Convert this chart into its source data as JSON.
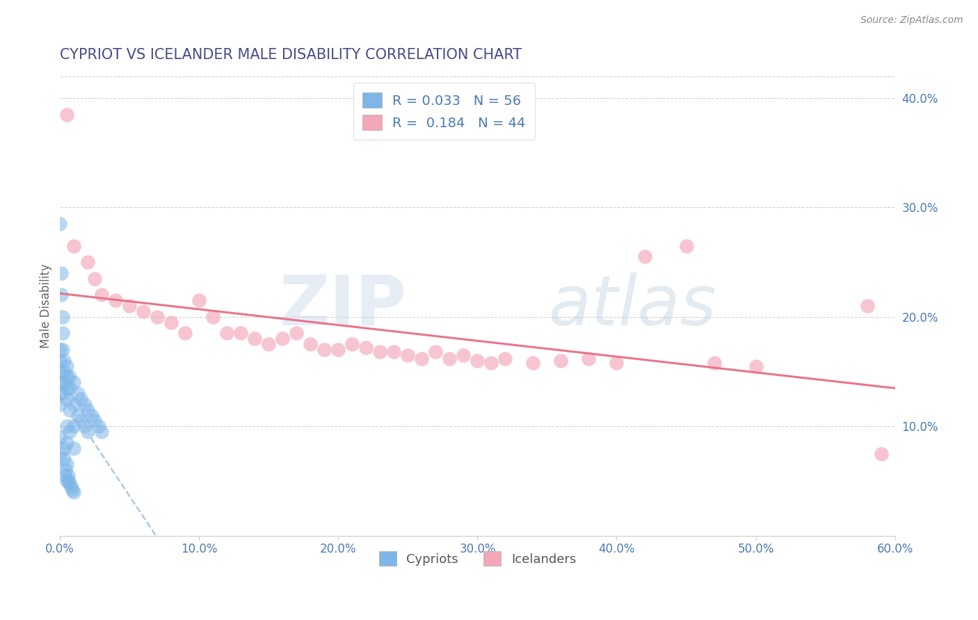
{
  "title": "CYPRIOT VS ICELANDER MALE DISABILITY CORRELATION CHART",
  "source": "Source: ZipAtlas.com",
  "ylabel": "Male Disability",
  "xlim": [
    0.0,
    0.6
  ],
  "ylim": [
    0.0,
    0.42
  ],
  "xticks": [
    0.0,
    0.1,
    0.2,
    0.3,
    0.4,
    0.5,
    0.6
  ],
  "xticklabels": [
    "0.0%",
    "10.0%",
    "20.0%",
    "30.0%",
    "40.0%",
    "50.0%",
    "60.0%"
  ],
  "yticks_right": [
    0.1,
    0.2,
    0.3,
    0.4
  ],
  "yticklabels_right": [
    "10.0%",
    "20.0%",
    "30.0%",
    "40.0%"
  ],
  "cypriot_color": "#7eb6e8",
  "icelander_color": "#f4a7b9",
  "cypriot_R": 0.033,
  "cypriot_N": 56,
  "icelander_R": 0.184,
  "icelander_N": 44,
  "background_color": "#ffffff",
  "grid_color": "#cccccc",
  "title_color": "#4a4a8a",
  "label_color": "#4a7ab5",
  "watermark": "ZIPatlas",
  "cypriot_x": [
    0.0,
    0.0,
    0.0,
    0.0,
    0.0,
    0.0,
    0.0,
    0.0,
    0.003,
    0.003,
    0.003,
    0.003,
    0.003,
    0.003,
    0.005,
    0.005,
    0.005,
    0.005,
    0.005,
    0.005,
    0.005,
    0.007,
    0.007,
    0.007,
    0.007,
    0.01,
    0.01,
    0.01,
    0.01,
    0.013,
    0.013,
    0.015,
    0.015,
    0.018,
    0.018,
    0.02,
    0.02,
    0.023,
    0.025,
    0.028,
    0.03,
    0.0,
    0.001,
    0.001,
    0.002,
    0.002,
    0.002,
    0.004,
    0.004,
    0.005,
    0.006,
    0.006,
    0.007,
    0.008,
    0.009,
    0.01
  ],
  "cypriot_y": [
    0.17,
    0.16,
    0.15,
    0.14,
    0.13,
    0.12,
    0.09,
    0.075,
    0.16,
    0.15,
    0.14,
    0.13,
    0.08,
    0.07,
    0.155,
    0.145,
    0.135,
    0.125,
    0.1,
    0.085,
    0.065,
    0.145,
    0.135,
    0.115,
    0.095,
    0.14,
    0.12,
    0.1,
    0.08,
    0.13,
    0.11,
    0.125,
    0.105,
    0.12,
    0.1,
    0.115,
    0.095,
    0.11,
    0.105,
    0.1,
    0.095,
    0.285,
    0.24,
    0.22,
    0.2,
    0.185,
    0.17,
    0.06,
    0.055,
    0.05,
    0.055,
    0.05,
    0.048,
    0.045,
    0.042,
    0.04
  ],
  "icelander_x": [
    0.005,
    0.01,
    0.02,
    0.025,
    0.03,
    0.04,
    0.05,
    0.06,
    0.07,
    0.08,
    0.09,
    0.1,
    0.11,
    0.12,
    0.13,
    0.14,
    0.15,
    0.16,
    0.17,
    0.18,
    0.19,
    0.2,
    0.21,
    0.22,
    0.23,
    0.24,
    0.25,
    0.26,
    0.27,
    0.28,
    0.29,
    0.3,
    0.31,
    0.32,
    0.34,
    0.36,
    0.38,
    0.4,
    0.42,
    0.45,
    0.47,
    0.5,
    0.58,
    0.59
  ],
  "icelander_y": [
    0.385,
    0.265,
    0.25,
    0.235,
    0.22,
    0.215,
    0.21,
    0.205,
    0.2,
    0.195,
    0.185,
    0.215,
    0.2,
    0.185,
    0.185,
    0.18,
    0.175,
    0.18,
    0.185,
    0.175,
    0.17,
    0.17,
    0.175,
    0.172,
    0.168,
    0.168,
    0.165,
    0.162,
    0.168,
    0.162,
    0.165,
    0.16,
    0.158,
    0.162,
    0.158,
    0.16,
    0.162,
    0.158,
    0.255,
    0.265,
    0.158,
    0.155,
    0.21,
    0.075
  ],
  "trend_cypriot_color": "#7eb6e8",
  "trend_icelander_color": "#e8758a"
}
